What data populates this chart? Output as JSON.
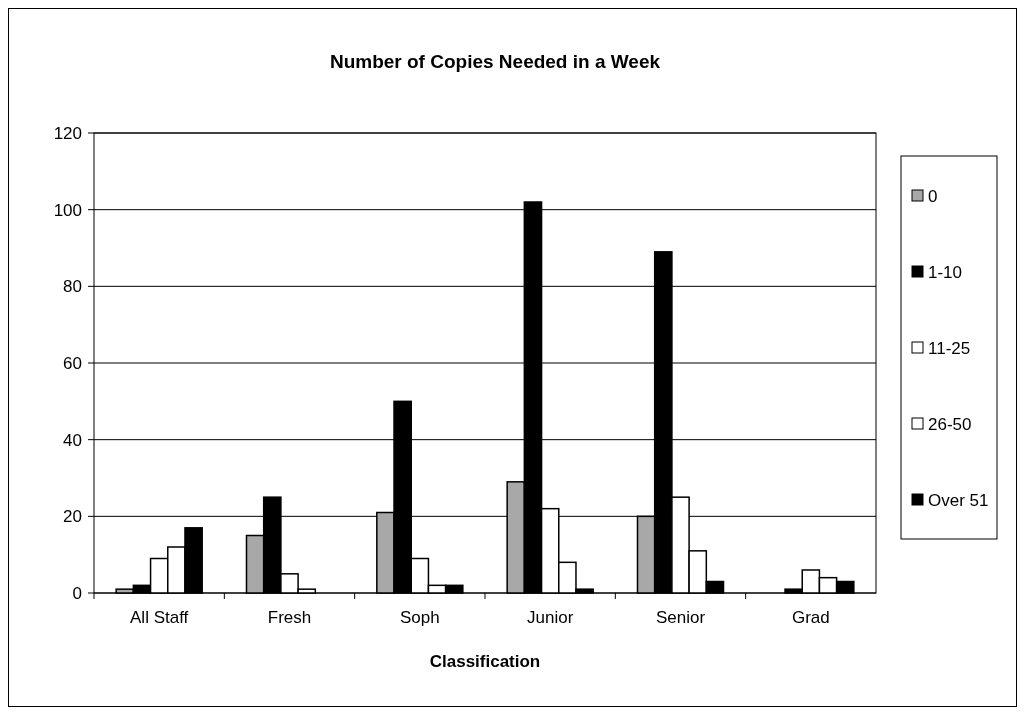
{
  "chart_data": {
    "type": "bar",
    "title": "Number of Copies Needed in a Week",
    "xlabel": "Classification",
    "categories": [
      "All Staff",
      "Fresh",
      "Soph",
      "Junior",
      "Senior",
      "Grad"
    ],
    "series": [
      {
        "name": "0",
        "color": "#a8a8a8",
        "values": [
          1,
          15,
          21,
          29,
          20,
          0
        ]
      },
      {
        "name": "1-10",
        "color": "#000000",
        "values": [
          2,
          25,
          50,
          102,
          89,
          1
        ]
      },
      {
        "name": "11-25",
        "color": "#ffffff",
        "values": [
          9,
          5,
          9,
          22,
          25,
          6
        ]
      },
      {
        "name": "26-50",
        "color": "#ffffff",
        "values": [
          12,
          1,
          2,
          8,
          11,
          4
        ]
      },
      {
        "name": "Over 51",
        "color": "#000000",
        "values": [
          17,
          0,
          2,
          1,
          3,
          3
        ]
      }
    ],
    "ylim": [
      0,
      120
    ],
    "yticks": [
      0,
      20,
      40,
      60,
      80,
      100,
      120
    ],
    "grid": "y",
    "legend": "right"
  }
}
